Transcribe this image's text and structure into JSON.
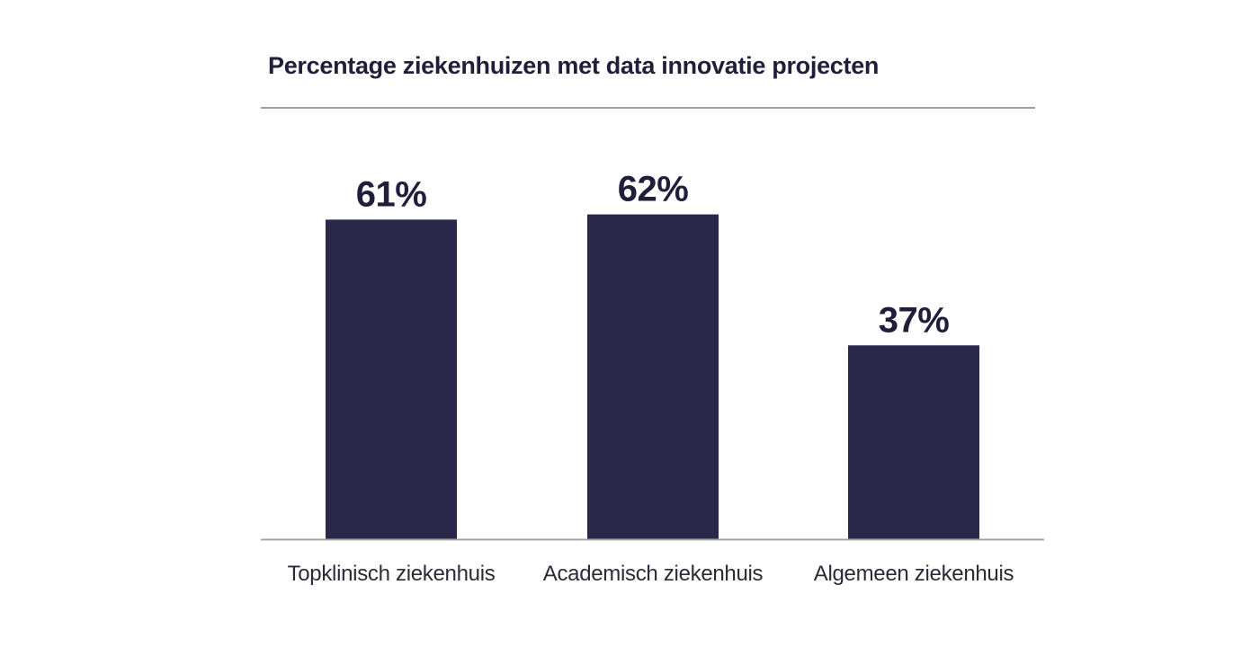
{
  "chart_data": {
    "type": "bar",
    "title": "Percentage ziekenhuizen met data innovatie projecten",
    "categories": [
      "Topklinisch ziekenhuis",
      "Academisch ziekenhuis",
      "Algemeen ziekenhuis"
    ],
    "values": [
      61,
      62,
      37
    ],
    "data_labels": [
      "61%",
      "62%",
      "37%"
    ],
    "unit": "%",
    "ylim": [
      0,
      100
    ],
    "grid": false,
    "legend": "none"
  },
  "colors": {
    "bar": "#29284a",
    "text": "#1f1f3a",
    "category_text": "#2b2b38",
    "rule": "#9e9e9e",
    "baseline": "#a5a5a5"
  }
}
